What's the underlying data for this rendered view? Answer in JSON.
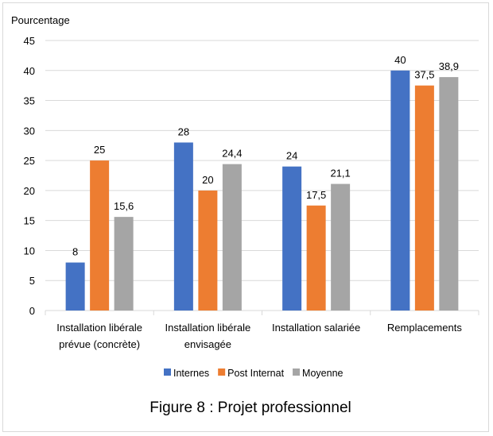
{
  "chart_data": {
    "type": "bar",
    "ylabel": "Pourcentage",
    "xlabel": "",
    "ylim": [
      0,
      45
    ],
    "yticks": [
      0,
      5,
      10,
      15,
      20,
      25,
      30,
      35,
      40,
      45
    ],
    "grid": true,
    "categories": [
      [
        "Installation libérale",
        "prévue (concrète)"
      ],
      [
        "Installation libérale",
        "envisagée"
      ],
      [
        "Installation salariée"
      ],
      [
        "Remplacements"
      ]
    ],
    "series": [
      {
        "name": "Internes",
        "color": "#4472c4",
        "values": [
          8,
          28,
          24,
          40
        ],
        "labels": [
          "8",
          "28",
          "24",
          "40"
        ]
      },
      {
        "name": "Post Internat",
        "color": "#ed7d31",
        "values": [
          25,
          20,
          17.5,
          37.5
        ],
        "labels": [
          "25",
          "20",
          "17,5",
          "37,5"
        ]
      },
      {
        "name": "Moyenne",
        "color": "#a5a5a5",
        "values": [
          15.6,
          24.4,
          21.1,
          38.9
        ],
        "labels": [
          "15,6",
          "24,4",
          "21,1",
          "38,9"
        ]
      }
    ],
    "legend_position": "bottom",
    "caption": "Figure 8 : Projet professionnel"
  }
}
